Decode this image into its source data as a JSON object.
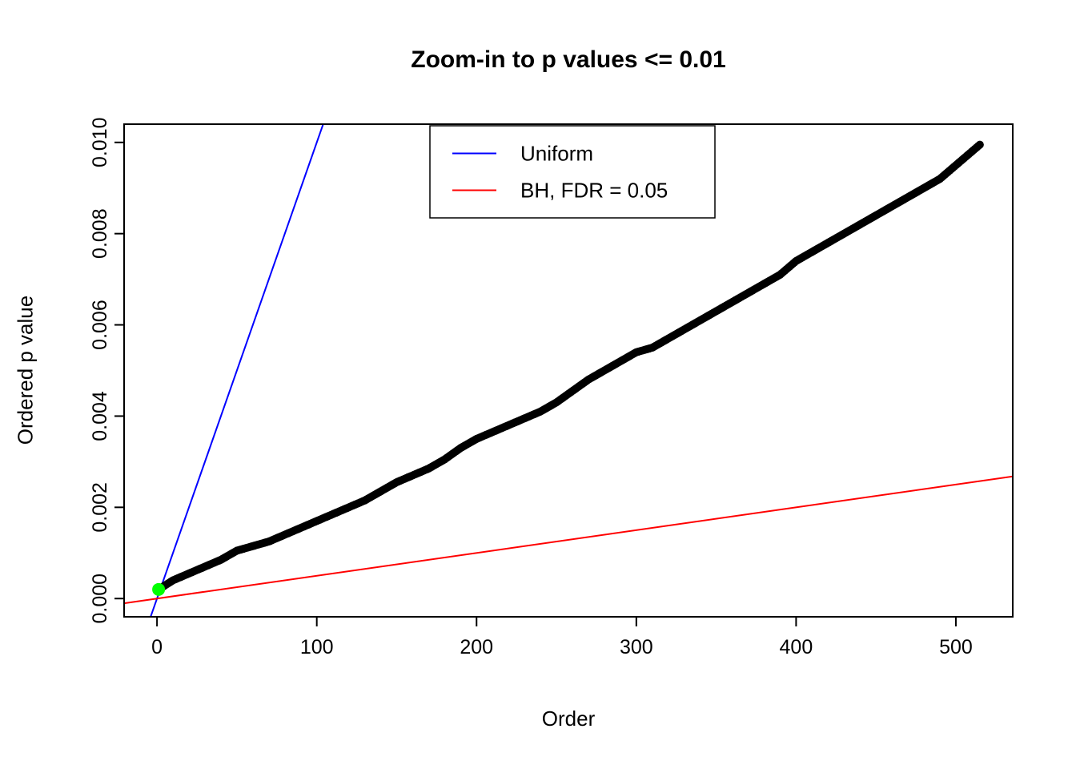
{
  "chart_data": {
    "type": "scatter",
    "title": "Zoom-in to p values <= 0.01",
    "xlabel": "Order",
    "ylabel": "Ordered p value",
    "xlim": [
      -20.6,
      535.6
    ],
    "ylim": [
      -0.0004,
      0.0104
    ],
    "x_ticks": [
      0,
      100,
      200,
      300,
      400,
      500
    ],
    "x_tick_labels": [
      "0",
      "100",
      "200",
      "300",
      "400",
      "500"
    ],
    "y_ticks": [
      0.0,
      0.002,
      0.004,
      0.006,
      0.008,
      0.01
    ],
    "y_tick_labels": [
      "0.000",
      "0.002",
      "0.004",
      "0.006",
      "0.008",
      "0.010"
    ],
    "grid": false,
    "n_points": 515,
    "point_color": "#000000",
    "points_control": [
      [
        1,
        0.0002
      ],
      [
        10,
        0.0004
      ],
      [
        20,
        0.00055
      ],
      [
        30,
        0.0007
      ],
      [
        40,
        0.00085
      ],
      [
        50,
        0.00105
      ],
      [
        60,
        0.00115
      ],
      [
        70,
        0.00125
      ],
      [
        80,
        0.0014
      ],
      [
        90,
        0.00155
      ],
      [
        100,
        0.0017
      ],
      [
        110,
        0.00185
      ],
      [
        120,
        0.002
      ],
      [
        130,
        0.00215
      ],
      [
        140,
        0.00235
      ],
      [
        150,
        0.00255
      ],
      [
        160,
        0.0027
      ],
      [
        170,
        0.00285
      ],
      [
        180,
        0.00305
      ],
      [
        190,
        0.0033
      ],
      [
        200,
        0.0035
      ],
      [
        210,
        0.00365
      ],
      [
        220,
        0.0038
      ],
      [
        230,
        0.00395
      ],
      [
        240,
        0.0041
      ],
      [
        250,
        0.0043
      ],
      [
        260,
        0.00455
      ],
      [
        270,
        0.0048
      ],
      [
        280,
        0.005
      ],
      [
        290,
        0.0052
      ],
      [
        300,
        0.0054
      ],
      [
        310,
        0.0055
      ],
      [
        320,
        0.0057
      ],
      [
        330,
        0.0059
      ],
      [
        340,
        0.0061
      ],
      [
        350,
        0.0063
      ],
      [
        360,
        0.0065
      ],
      [
        370,
        0.0067
      ],
      [
        380,
        0.0069
      ],
      [
        390,
        0.0071
      ],
      [
        400,
        0.0074
      ],
      [
        410,
        0.0076
      ],
      [
        420,
        0.0078
      ],
      [
        430,
        0.008
      ],
      [
        440,
        0.0082
      ],
      [
        450,
        0.0084
      ],
      [
        460,
        0.0086
      ],
      [
        470,
        0.0088
      ],
      [
        480,
        0.009
      ],
      [
        490,
        0.0092
      ],
      [
        500,
        0.0095
      ],
      [
        510,
        0.0098
      ],
      [
        515,
        0.00995
      ]
    ],
    "lines": [
      {
        "name": "Uniform",
        "color": "#0000ff",
        "intercept": 0,
        "slope": 0.0001
      },
      {
        "name": "BH, FDR = 0.05",
        "color": "#ff0000",
        "intercept": 0,
        "slope": 5e-06
      }
    ],
    "highlight_point": {
      "x": 1,
      "y": 0.0002,
      "color": "#00ff00"
    },
    "legend": {
      "position": "top-center",
      "entries": [
        {
          "label": "Uniform",
          "color": "#0000ff"
        },
        {
          "label": "BH, FDR = 0.05",
          "color": "#ff0000"
        }
      ]
    }
  }
}
